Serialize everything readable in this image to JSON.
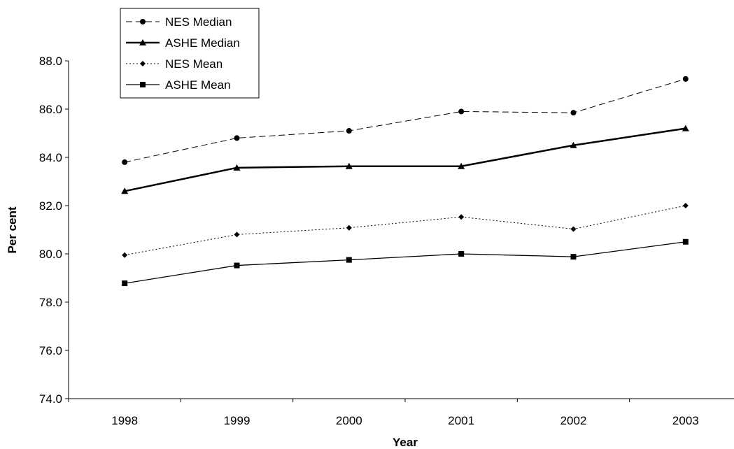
{
  "chart_data": {
    "type": "line",
    "title": "",
    "xlabel": "Year",
    "ylabel": "Per cent",
    "categories": [
      "1998",
      "1999",
      "2000",
      "2001",
      "2002",
      "2003"
    ],
    "ylim": [
      74.0,
      88.0
    ],
    "yticks": [
      "74.0",
      "76.0",
      "78.0",
      "80.0",
      "82.0",
      "84.0",
      "86.0",
      "88.0"
    ],
    "grid": false,
    "legend_position": "top-left",
    "series": [
      {
        "name": "NES Median",
        "values": [
          83.8,
          84.8,
          85.1,
          85.9,
          85.85,
          87.25
        ],
        "marker": "circle",
        "line": "dashed",
        "color": "#000000"
      },
      {
        "name": "ASHE Median",
        "values": [
          82.6,
          83.57,
          83.63,
          83.63,
          84.5,
          85.2
        ],
        "marker": "triangle",
        "line": "solid-thick",
        "color": "#000000"
      },
      {
        "name": "NES Mean",
        "values": [
          79.95,
          80.8,
          81.08,
          81.53,
          81.03,
          82.0
        ],
        "marker": "diamond",
        "line": "dotted",
        "color": "#000000"
      },
      {
        "name": "ASHE Mean",
        "values": [
          78.78,
          79.52,
          79.75,
          80.0,
          79.88,
          80.5
        ],
        "marker": "square",
        "line": "solid-thin",
        "color": "#000000"
      }
    ]
  }
}
